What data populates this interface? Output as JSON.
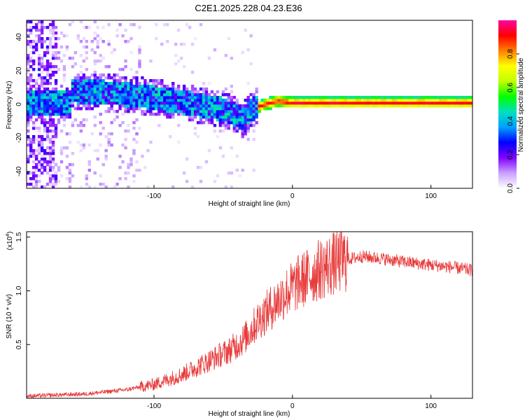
{
  "chart_data": [
    {
      "type": "heatmap",
      "title": "C2E1.2025.228.04.23.E36",
      "xlabel": "Height of straight line (km)",
      "ylabel": "Frequency (Hz)",
      "xlim": [
        -192,
        130
      ],
      "ylim": [
        -50,
        50
      ],
      "xticks": [
        "-100",
        "0",
        "100"
      ],
      "yticks": [
        "40",
        "20",
        "0",
        "-20",
        "-40"
      ],
      "colorbar": {
        "label": "Normalized spectral amplitude",
        "range": [
          0,
          1
        ],
        "ticks": [
          "0.0",
          "0.2",
          "0.4",
          "0.6",
          "0.8"
        ],
        "colors": [
          "#ffffff",
          "#c9a0ff",
          "#8000ff",
          "#0000ff",
          "#00a0ff",
          "#00e0c0",
          "#00ff00",
          "#c0ff00",
          "#ffff00",
          "#ff8000",
          "#ff0000",
          "#ff00a0"
        ]
      },
      "band_center_hz": [
        {
          "x": -160,
          "y": 8
        },
        {
          "x": -130,
          "y": 7
        },
        {
          "x": -100,
          "y": 4
        },
        {
          "x": -70,
          "y": 0
        },
        {
          "x": -50,
          "y": -3
        },
        {
          "x": -40,
          "y": -7
        },
        {
          "x": -35,
          "y": -9
        },
        {
          "x": -30,
          "y": -3
        },
        {
          "x": -20,
          "y": 0
        },
        {
          "x": -10,
          "y": 2
        },
        {
          "x": 0,
          "y": 1
        },
        {
          "x": 50,
          "y": 1
        },
        {
          "x": 100,
          "y": 1
        },
        {
          "x": 130,
          "y": 1
        }
      ]
    },
    {
      "type": "line",
      "xlabel": "Height of straight line (km)",
      "ylabel": "SNR (10 * v/v)",
      "scale_label": "(x10",
      "scale_exponent": "4",
      "xlim": [
        -192,
        130
      ],
      "ylim": [
        0,
        1.55
      ],
      "xticks": [
        "-100",
        "0",
        "100"
      ],
      "yticks": [
        "1.5",
        "1.0",
        "0.5"
      ],
      "series_color": "#e83a3a",
      "trend": [
        {
          "x": -192,
          "y": 0.02
        },
        {
          "x": -150,
          "y": 0.04
        },
        {
          "x": -120,
          "y": 0.08
        },
        {
          "x": -100,
          "y": 0.13
        },
        {
          "x": -80,
          "y": 0.22
        },
        {
          "x": -60,
          "y": 0.35
        },
        {
          "x": -45,
          "y": 0.45
        },
        {
          "x": -35,
          "y": 0.55
        },
        {
          "x": -25,
          "y": 0.72
        },
        {
          "x": -15,
          "y": 0.85
        },
        {
          "x": -5,
          "y": 0.98
        },
        {
          "x": 5,
          "y": 1.08
        },
        {
          "x": 20,
          "y": 1.2
        },
        {
          "x": 35,
          "y": 1.28
        },
        {
          "x": 50,
          "y": 1.32
        },
        {
          "x": 65,
          "y": 1.3
        },
        {
          "x": 80,
          "y": 1.27
        },
        {
          "x": 100,
          "y": 1.24
        },
        {
          "x": 115,
          "y": 1.22
        },
        {
          "x": 130,
          "y": 1.19
        }
      ]
    }
  ]
}
